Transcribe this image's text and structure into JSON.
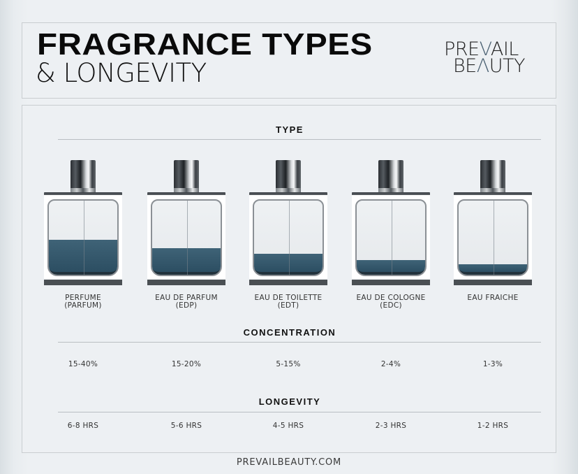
{
  "header": {
    "title_line1": "FRAGRANCE TYPES",
    "title_line2": "& LONGEVITY",
    "logo": {
      "line1_pre": "PRE",
      "line1_accent": "V",
      "line1_post": "AIL",
      "line2_pre": "BE",
      "line2_accent": "Λ",
      "line2_post": "UTY",
      "accent_color": "#4a6072"
    }
  },
  "sections": {
    "type": "TYPE",
    "concentration": "CONCENTRATION",
    "longevity": "LONGEVITY"
  },
  "fragrances": [
    {
      "name_line1": "PERFUME",
      "name_line2": "(PARFUM)",
      "concentration": "15-40%",
      "longevity": "6-8 HRS",
      "fill_percent": 47
    },
    {
      "name_line1": "EAU DE PARFUM",
      "name_line2": "(EDP)",
      "concentration": "15-20%",
      "longevity": "5-6 HRS",
      "fill_percent": 36
    },
    {
      "name_line1": "EAU DE TOILETTE",
      "name_line2": "(EDT)",
      "concentration": "5-15%",
      "longevity": "4-5 HRS",
      "fill_percent": 28
    },
    {
      "name_line1": "EAU DE COLOGNE",
      "name_line2": "(EDC)",
      "concentration": "2-4%",
      "longevity": "2-3 HRS",
      "fill_percent": 20
    },
    {
      "name_line1": "EAU FRAICHE",
      "name_line2": "",
      "concentration": "1-3%",
      "longevity": "1-2 HRS",
      "fill_percent": 14
    }
  ],
  "colors": {
    "liquid": "#2f5266",
    "background": "#edf0f3",
    "rule": "#b9bec2"
  },
  "footer": "PREVAILBEAUTY.COM"
}
